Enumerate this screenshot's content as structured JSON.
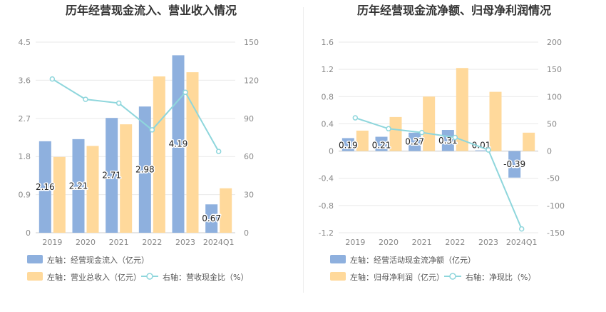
{
  "chart_data": [
    {
      "type": "bar",
      "title": "历年经营现金流入、营业收入情况",
      "categories": [
        "2019",
        "2020",
        "2021",
        "2022",
        "2023",
        "2024Q1"
      ],
      "y_left": {
        "ticks": [
          "0",
          "0.9",
          "1.8",
          "2.7",
          "3.6",
          "4.5"
        ],
        "ylim": [
          0,
          4.5
        ]
      },
      "y_right": {
        "ticks": [
          "0",
          "30",
          "60",
          "90",
          "120",
          "150"
        ],
        "ylim": [
          0,
          150
        ]
      },
      "series": [
        {
          "name": "左轴：经营现金流入（亿元）",
          "kind": "bar",
          "axis": "left",
          "color": "#8eb0de",
          "values": [
            2.16,
            2.21,
            2.71,
            2.98,
            4.19,
            0.67
          ],
          "labels": [
            "2.16",
            "2.21",
            "2.71",
            "2.98",
            "4.19",
            "0.67"
          ]
        },
        {
          "name": "左轴：营业总收入（亿元）",
          "kind": "bar",
          "axis": "left",
          "color": "#ffd99b",
          "values": [
            1.79,
            2.05,
            2.56,
            3.69,
            3.79,
            1.05
          ]
        },
        {
          "name": "右轴：营收现金比（%）",
          "kind": "line",
          "axis": "right",
          "color": "#8ed6dc",
          "values": [
            121,
            105,
            102,
            81,
            110.5,
            64
          ]
        }
      ],
      "grid": true,
      "legend": "bottom-left"
    },
    {
      "type": "bar",
      "title": "历年经营现金流净额、归母净利润情况",
      "categories": [
        "2019",
        "2020",
        "2021",
        "2022",
        "2023",
        "2024Q1"
      ],
      "y_left": {
        "ticks": [
          "-1.2",
          "-0.8",
          "-0.4",
          "0",
          "0.4",
          "0.8",
          "1.2",
          "1.6"
        ],
        "ylim": [
          -1.2,
          1.6
        ]
      },
      "y_right": {
        "ticks": [
          "-150",
          "-100",
          "-50",
          "0",
          "50",
          "100",
          "150",
          "200"
        ],
        "ylim": [
          -150,
          200
        ]
      },
      "series": [
        {
          "name": "左轴：经营活动现金流净额（亿元）",
          "kind": "bar",
          "axis": "left",
          "color": "#8eb0de",
          "values": [
            0.19,
            0.21,
            0.27,
            0.31,
            0.01,
            -0.39
          ],
          "labels": [
            "0.19",
            "0.21",
            "0.27",
            "0.31",
            "0.01",
            "-0.39"
          ]
        },
        {
          "name": "左轴：归母净利润（亿元）",
          "kind": "bar",
          "axis": "left",
          "color": "#ffd99b",
          "values": [
            0.3,
            0.5,
            0.8,
            1.22,
            0.87,
            0.27
          ]
        },
        {
          "name": "右轴：净现比（%）",
          "kind": "line",
          "axis": "right",
          "color": "#8ed6dc",
          "values": [
            61,
            41,
            34,
            25,
            2,
            -143
          ]
        }
      ],
      "grid": true,
      "legend": "bottom-left"
    }
  ]
}
